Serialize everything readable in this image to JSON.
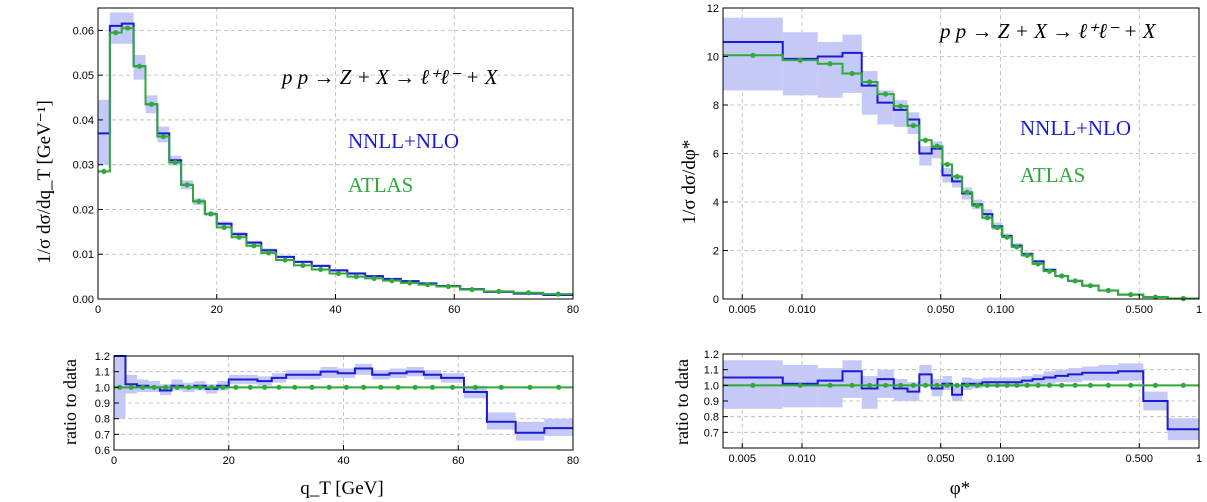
{
  "colors": {
    "theory": "#1b1bd6",
    "band": "#c5c9f7",
    "data": "#30a83a",
    "grid": "#b8b8b8"
  },
  "labels": {
    "left_process": "p p → Z + X → ℓ⁺ℓ⁻ + X",
    "right_process": "p p → Z + X → ℓ⁺ℓ⁻ + X",
    "left_legend_theory": "NNLL+NLO",
    "left_legend_data": "ATLAS",
    "right_legend_theory": "NNLL+NLO",
    "right_legend_data": "ATLAS",
    "left_ylabel": "1/σ dσ/dq_T [GeV⁻¹]",
    "right_ylabel": "1/σ dσ/dφ*",
    "left_ratio_ylabel": "ratio to data",
    "right_ratio_ylabel": "ratio to data",
    "left_xlabel": "q_T [GeV]",
    "right_xlabel": "φ*"
  },
  "chart_data": [
    {
      "type": "line",
      "ylabel": "1/σ dσ/dq_T [GeV⁻¹]",
      "xlim": [
        0,
        80
      ],
      "ylim": [
        0,
        0.065
      ],
      "xticks": [
        0,
        20,
        40,
        60,
        80
      ],
      "yticks": [
        0.0,
        0.01,
        0.02,
        0.03,
        0.04,
        0.05,
        0.06
      ],
      "ytick_labels": [
        "0.00",
        "0.01",
        "0.02",
        "0.03",
        "0.04",
        "0.05",
        "0.06"
      ],
      "grid": true,
      "annotation": "p p → Z + X → ℓ⁺ℓ⁻ + X",
      "legend": [
        "NNLL+NLO",
        "ATLAS"
      ],
      "bin_edges": [
        0,
        2,
        4,
        6,
        8,
        10,
        12,
        14,
        16,
        18,
        20,
        22.5,
        25,
        27.5,
        30,
        33,
        36,
        39,
        42,
        45,
        48,
        51,
        54,
        57,
        61,
        65,
        70,
        75,
        80
      ],
      "series": [
        {
          "name": "NNLL+NLO",
          "values": [
            0.037,
            0.061,
            0.0615,
            0.052,
            0.0435,
            0.037,
            0.031,
            0.0255,
            0.0218,
            0.019,
            0.0168,
            0.0145,
            0.0126,
            0.0109,
            0.0094,
            0.0083,
            0.0074,
            0.0064,
            0.0057,
            0.0051,
            0.0045,
            0.004,
            0.0035,
            0.0029,
            0.0022,
            0.0016,
            0.0012,
            0.0009
          ],
          "band_low": [
            0.03,
            0.057,
            0.057,
            0.049,
            0.0415,
            0.035,
            0.0298,
            0.0245,
            0.021,
            0.0185,
            0.0163,
            0.014,
            0.0122,
            0.0105,
            0.0091,
            0.008,
            0.0071,
            0.0061,
            0.0054,
            0.0049,
            0.0043,
            0.0038,
            0.0033,
            0.0028,
            0.0021,
            0.0015,
            0.0011,
            0.0008
          ],
          "band_high": [
            0.0445,
            0.064,
            0.064,
            0.0545,
            0.0455,
            0.0385,
            0.032,
            0.0265,
            0.0225,
            0.0195,
            0.0173,
            0.015,
            0.013,
            0.0113,
            0.0097,
            0.0086,
            0.0077,
            0.0067,
            0.006,
            0.0053,
            0.0047,
            0.0042,
            0.0037,
            0.003,
            0.0023,
            0.0017,
            0.0013,
            0.001
          ]
        },
        {
          "name": "ATLAS",
          "values": [
            0.0285,
            0.0595,
            0.0605,
            0.052,
            0.0435,
            0.0363,
            0.0305,
            0.0255,
            0.0218,
            0.019,
            0.016,
            0.0138,
            0.0119,
            0.0103,
            0.0087,
            0.0075,
            0.0066,
            0.0057,
            0.005,
            0.0046,
            0.0041,
            0.0036,
            0.0032,
            0.0028,
            0.0021,
            0.0017,
            0.0014,
            0.0011
          ]
        }
      ]
    },
    {
      "type": "line",
      "ylabel": "ratio to data",
      "xlabel": "q_T [GeV]",
      "xlim": [
        0,
        80
      ],
      "ylim": [
        0.6,
        1.2
      ],
      "xticks": [
        0,
        20,
        40,
        60,
        80
      ],
      "yticks": [
        0.6,
        0.7,
        0.8,
        0.9,
        1.0,
        1.1,
        1.2
      ],
      "ytick_labels": [
        "0.6",
        "0.7",
        "0.8",
        "0.9",
        "1.0",
        "1.1",
        "1.2"
      ],
      "grid": true,
      "bin_edges": [
        0,
        2,
        4,
        6,
        8,
        10,
        12,
        14,
        16,
        18,
        20,
        22.5,
        25,
        27.5,
        30,
        33,
        36,
        39,
        42,
        45,
        48,
        51,
        54,
        57,
        61,
        65,
        70,
        75,
        80
      ],
      "series": [
        {
          "name": "NNLL+NLO",
          "values": [
            1.25,
            1.02,
            1.01,
            1.0,
            0.98,
            1.01,
            1.0,
            1.01,
            0.99,
            1.01,
            1.05,
            1.05,
            1.04,
            1.06,
            1.08,
            1.08,
            1.1,
            1.09,
            1.12,
            1.08,
            1.09,
            1.1,
            1.08,
            1.06,
            0.97,
            0.78,
            0.71,
            0.74
          ],
          "band_low": [
            0.8,
            0.96,
            0.97,
            0.97,
            0.95,
            0.98,
            0.97,
            0.98,
            0.96,
            0.98,
            1.02,
            1.02,
            1.01,
            1.03,
            1.05,
            1.05,
            1.06,
            1.06,
            1.08,
            1.05,
            1.06,
            1.07,
            1.05,
            1.03,
            0.93,
            0.73,
            0.66,
            0.69
          ],
          "band_high": [
            1.2,
            1.08,
            1.05,
            1.04,
            1.02,
            1.05,
            1.03,
            1.04,
            1.02,
            1.04,
            1.08,
            1.08,
            1.07,
            1.09,
            1.11,
            1.11,
            1.13,
            1.12,
            1.15,
            1.11,
            1.12,
            1.13,
            1.11,
            1.09,
            1.01,
            0.84,
            0.78,
            0.8
          ]
        },
        {
          "name": "ATLAS",
          "constant": 1.0
        }
      ]
    },
    {
      "type": "line",
      "ylabel": "1/σ dσ/dφ*",
      "x_scale": "log",
      "xlim": [
        0.004,
        1.0
      ],
      "ylim": [
        0,
        12
      ],
      "xticks": [
        0.005,
        0.01,
        0.05,
        0.1,
        0.5,
        1
      ],
      "xtick_labels": [
        "0.005",
        "0.010",
        "0.050",
        "0.100",
        "0.500",
        "1"
      ],
      "yticks": [
        0,
        2,
        4,
        6,
        8,
        10,
        12
      ],
      "ytick_labels": [
        "0",
        "2",
        "4",
        "6",
        "8",
        "10",
        "12"
      ],
      "grid": true,
      "annotation": "p p → Z + X → ℓ⁺ℓ⁻ + X",
      "legend": [
        "NNLL+NLO",
        "ATLAS"
      ],
      "bin_edges": [
        0.004,
        0.008,
        0.012,
        0.016,
        0.02,
        0.024,
        0.029,
        0.034,
        0.039,
        0.045,
        0.051,
        0.057,
        0.064,
        0.072,
        0.081,
        0.091,
        0.102,
        0.114,
        0.128,
        0.145,
        0.165,
        0.189,
        0.219,
        0.258,
        0.312,
        0.391,
        0.524,
        0.695,
        1.0
      ],
      "series": [
        {
          "name": "NNLL+NLO",
          "values": [
            10.6,
            9.9,
            10.0,
            10.15,
            8.8,
            8.1,
            7.8,
            7.4,
            6.0,
            6.2,
            5.1,
            4.85,
            4.35,
            3.9,
            3.5,
            3.0,
            2.6,
            2.2,
            1.85,
            1.55,
            1.2,
            0.95,
            0.75,
            0.55,
            0.35,
            0.18,
            0.08,
            0.02
          ],
          "band_low": [
            8.6,
            8.4,
            8.3,
            8.5,
            7.6,
            7.2,
            7.1,
            6.8,
            5.5,
            5.8,
            4.8,
            4.6,
            4.1,
            3.7,
            3.3,
            2.85,
            2.5,
            2.1,
            1.75,
            1.45,
            1.12,
            0.88,
            0.68,
            0.5,
            0.3,
            0.15,
            0.06,
            0.01
          ],
          "band_high": [
            11.6,
            11.0,
            10.6,
            10.9,
            9.4,
            8.6,
            8.2,
            7.7,
            6.3,
            6.5,
            5.4,
            5.1,
            4.6,
            4.1,
            3.7,
            3.15,
            2.7,
            2.3,
            1.95,
            1.62,
            1.27,
            1.0,
            0.8,
            0.6,
            0.4,
            0.2,
            0.1,
            0.03
          ]
        },
        {
          "name": "ATLAS",
          "values": [
            10.05,
            9.85,
            9.7,
            9.3,
            8.95,
            8.45,
            7.95,
            7.15,
            6.55,
            6.3,
            5.55,
            5.05,
            4.4,
            3.85,
            3.35,
            2.95,
            2.55,
            2.15,
            1.8,
            1.45,
            1.15,
            0.95,
            0.75,
            0.55,
            0.35,
            0.18,
            0.08,
            0.02
          ]
        }
      ]
    },
    {
      "type": "line",
      "ylabel": "ratio to data",
      "xlabel": "φ*",
      "x_scale": "log",
      "xlim": [
        0.004,
        1.0
      ],
      "ylim": [
        0.6,
        1.2
      ],
      "xticks": [
        0.005,
        0.01,
        0.05,
        0.1,
        0.5,
        1
      ],
      "xtick_labels": [
        "0.005",
        "0.010",
        "0.050",
        "0.100",
        "0.500",
        "1"
      ],
      "yticks": [
        0.7,
        0.8,
        0.9,
        1.0,
        1.1,
        1.2
      ],
      "ytick_labels": [
        "0.7",
        "0.8",
        "0.9",
        "1.0",
        "1.1",
        "1.2"
      ],
      "grid": true,
      "bin_edges": [
        0.004,
        0.008,
        0.012,
        0.016,
        0.02,
        0.024,
        0.029,
        0.034,
        0.039,
        0.045,
        0.051,
        0.057,
        0.064,
        0.072,
        0.081,
        0.091,
        0.102,
        0.114,
        0.128,
        0.145,
        0.165,
        0.189,
        0.219,
        0.258,
        0.312,
        0.391,
        0.524,
        0.695,
        1.0
      ],
      "series": [
        {
          "name": "NNLL+NLO",
          "values": [
            1.05,
            1.01,
            1.03,
            1.09,
            0.98,
            1.04,
            0.98,
            0.96,
            1.07,
            0.98,
            1.01,
            0.94,
            1.01,
            1.01,
            1.02,
            1.02,
            1.02,
            1.02,
            1.03,
            1.04,
            1.05,
            1.06,
            1.07,
            1.08,
            1.08,
            1.09,
            0.9,
            0.72
          ],
          "band_low": [
            0.85,
            0.86,
            0.86,
            0.92,
            0.85,
            0.92,
            0.9,
            0.9,
            1.0,
            0.93,
            0.97,
            0.9,
            0.97,
            0.98,
            0.99,
            0.99,
            0.99,
            0.99,
            1.0,
            1.0,
            1.01,
            1.02,
            1.02,
            1.03,
            1.03,
            1.03,
            0.84,
            0.65
          ],
          "band_high": [
            1.16,
            1.13,
            1.11,
            1.16,
            1.06,
            1.1,
            1.04,
            1.02,
            1.13,
            1.04,
            1.06,
            1.0,
            1.05,
            1.04,
            1.05,
            1.05,
            1.05,
            1.05,
            1.06,
            1.07,
            1.09,
            1.1,
            1.11,
            1.12,
            1.13,
            1.14,
            0.96,
            0.79
          ]
        },
        {
          "name": "ATLAS",
          "constant": 1.0
        }
      ]
    }
  ]
}
